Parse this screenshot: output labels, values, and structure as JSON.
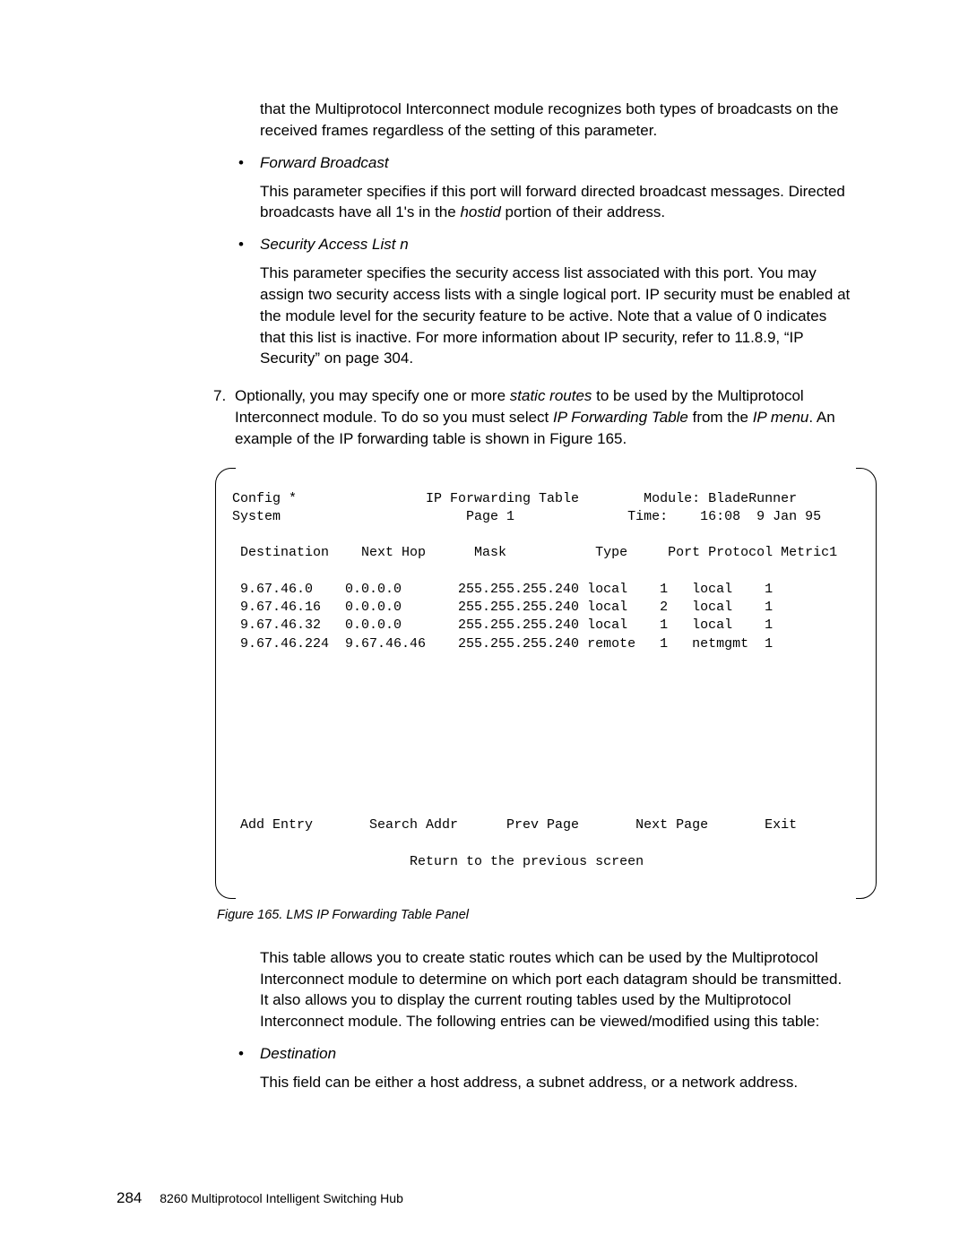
{
  "intro_para": "that the Multiprotocol Interconnect module recognizes both types of broadcasts on the received frames regardless of the setting of this parameter.",
  "bullet1": {
    "title": "Forward Broadcast",
    "para_parts": {
      "a": "This parameter specifies if this port will forward directed broadcast messages.  Directed broadcasts have all 1's in the ",
      "hostid": "hostid",
      "b": " portion of their address."
    }
  },
  "bullet2": {
    "title": "Security Access List n",
    "para": "This parameter specifies the security access list associated with this port.  You may assign two security access lists with a single logical port.  IP security must be enabled at the module level for the security feature to be active.  Note that a value of 0  indicates that this list is inactive.  For more information about IP security, refer to 11.8.9, “IP Security” on page  304."
  },
  "step7": {
    "num": "7.",
    "parts": {
      "a": "Optionally, you may specify one or more ",
      "sr": "static routes",
      "b": " to be used by the Multiprotocol Interconnect module.  To do so you must select ",
      "ipf": "IP Forwarding Table",
      "c": " from the ",
      "ipm": "IP menu",
      "d": ".  An example of the IP forwarding table is shown in Figure  165."
    }
  },
  "panel": {
    "header": {
      "config": "Config *",
      "title": "IP Forwarding Table",
      "module_label": "Module:",
      "module_value": "BladeRunner",
      "system": "System",
      "page": "Page 1",
      "time_label": "Time:",
      "time_value": "16:08  9 Jan 95"
    },
    "columns": {
      "dest": "Destination",
      "nexthop": "Next Hop",
      "mask": "Mask",
      "type": "Type",
      "port": "Port",
      "protocol": "Protocol",
      "metric": "Metric1"
    },
    "rows": [
      {
        "dest": "9.67.46.0",
        "nexthop": "0.0.0.0",
        "mask": "255.255.255.240",
        "type": "local",
        "port": "1",
        "protocol": "local",
        "metric": "1"
      },
      {
        "dest": "9.67.46.16",
        "nexthop": "0.0.0.0",
        "mask": "255.255.255.240",
        "type": "local",
        "port": "2",
        "protocol": "local",
        "metric": "1"
      },
      {
        "dest": "9.67.46.32",
        "nexthop": "0.0.0.0",
        "mask": "255.255.255.240",
        "type": "local",
        "port": "1",
        "protocol": "local",
        "metric": "1"
      },
      {
        "dest": "9.67.46.224",
        "nexthop": "9.67.46.46",
        "mask": "255.255.255.240",
        "type": "remote",
        "port": "1",
        "protocol": "netmgmt",
        "metric": "1"
      }
    ],
    "actions": {
      "add": "Add Entry",
      "search": "Search Addr",
      "prev": "Prev Page",
      "next": "Next Page",
      "exit": "Exit"
    },
    "return_line": "Return to the previous screen"
  },
  "fig_caption": "Figure  165.  LMS IP Forwarding Table Panel",
  "after_panel_para": "This table allows you to create static routes which can be used by the Multiprotocol Interconnect module to determine on which port each datagram should be transmitted.  It also allows you to display the current routing tables used by the Multiprotocol Interconnect module.  The following entries can be viewed/modified using this table:",
  "bullet3": {
    "title": "Destination",
    "para": "This field can be either a host address, a subnet address, or a network address."
  },
  "footer": {
    "page_num": "284",
    "book_title": "8260 Multiprotocol Intelligent Switching Hub"
  }
}
